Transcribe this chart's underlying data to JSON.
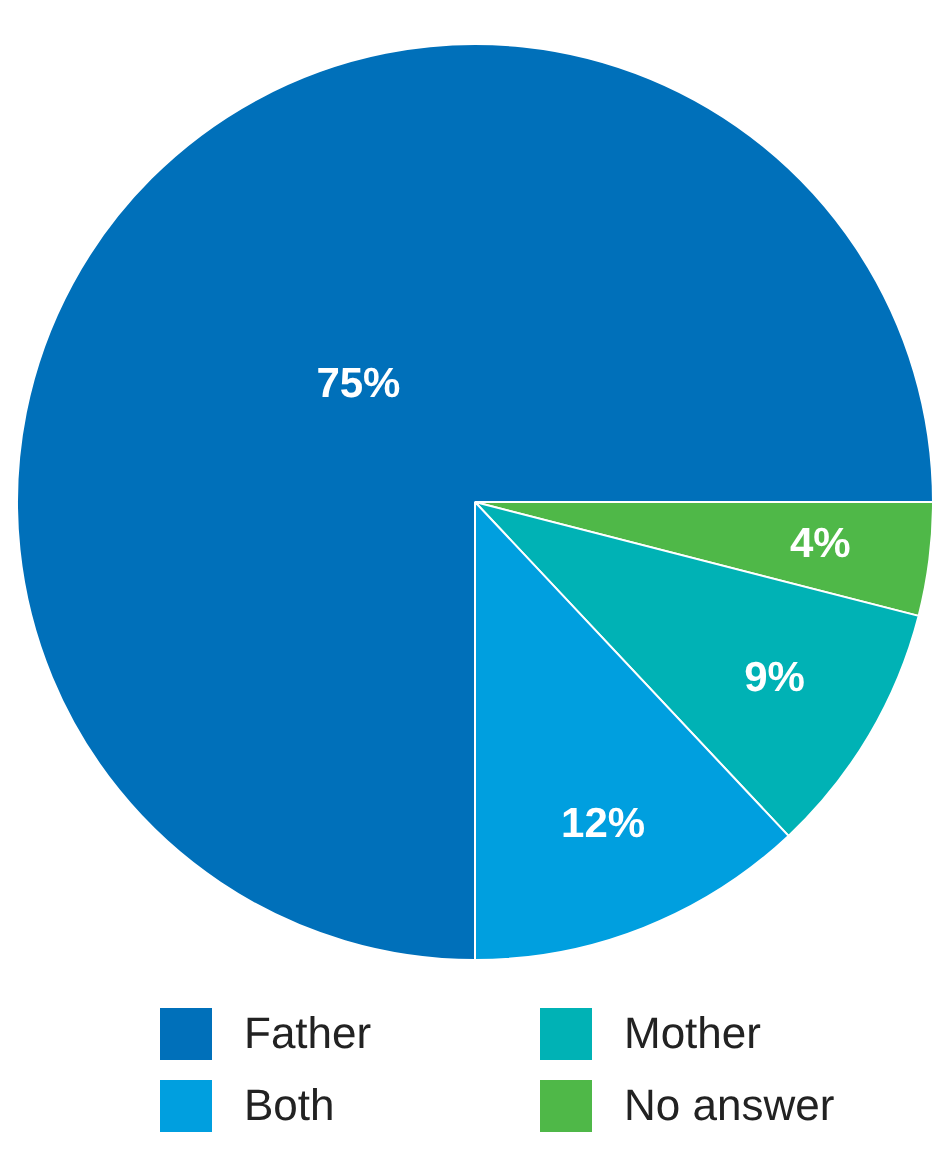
{
  "chart_data": {
    "type": "pie",
    "categories": [
      "No answer",
      "Mother",
      "Both",
      "Father"
    ],
    "values": [
      4,
      9,
      12,
      75
    ],
    "value_labels": [
      "4%",
      "9%",
      "12%",
      "75%"
    ],
    "colors": [
      "#4fb848",
      "#00b2b5",
      "#009fdf",
      "#0070ba"
    ],
    "legend": "bottom"
  }
}
